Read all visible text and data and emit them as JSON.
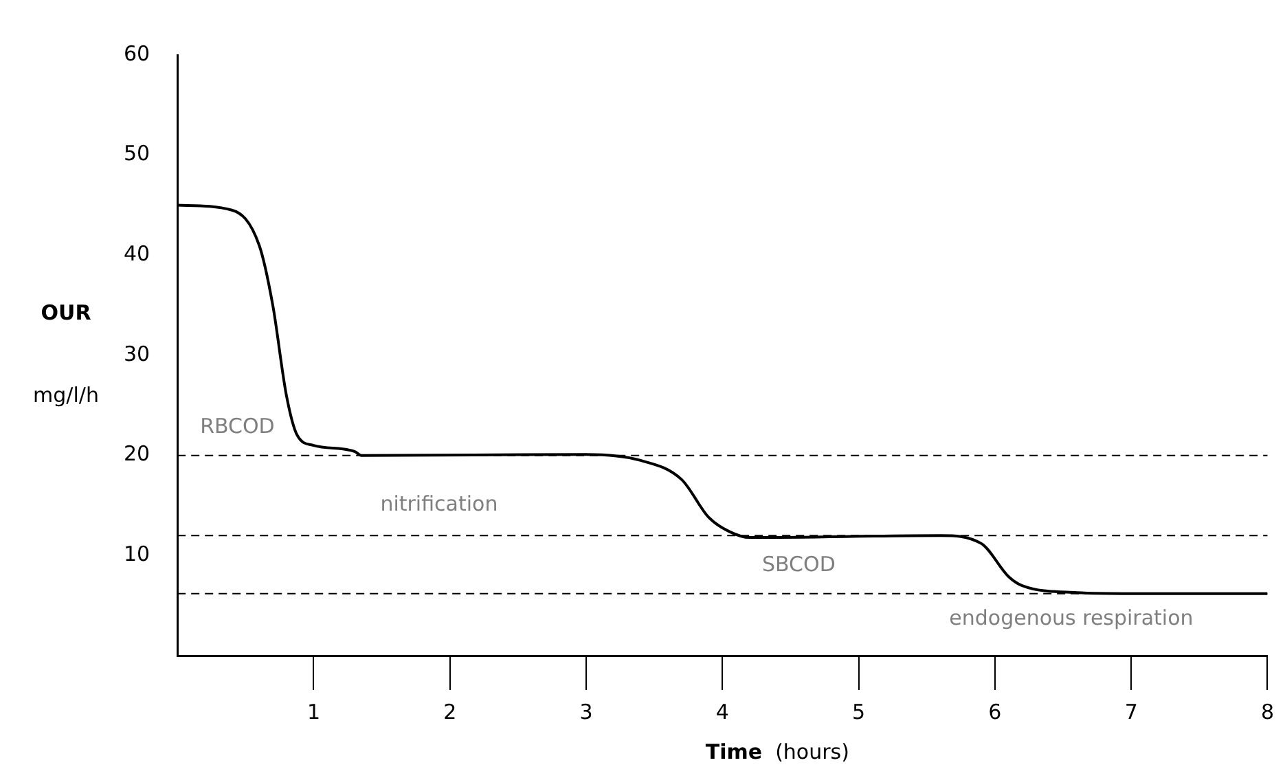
{
  "chart_data": {
    "type": "line",
    "xlabel": "Time (hours)",
    "ylabel": "OUR\nmg/l/h",
    "x": [
      0,
      0.4,
      0.6,
      0.7,
      0.8,
      0.88,
      1.0,
      1.3,
      1.35,
      3.0,
      3.4,
      3.7,
      3.9,
      4.05,
      4.2,
      5.6,
      5.9,
      6.1,
      6.2,
      6.6,
      7,
      8
    ],
    "series": [
      {
        "color": "#000000",
        "values": [
          45,
          44.5,
          41,
          35,
          26,
          22,
          21,
          20.4,
          20,
          20.1,
          19.5,
          17.6,
          13.8,
          12.4,
          11.8,
          12,
          11.2,
          7.9,
          7,
          6.3,
          6.2,
          6.2
        ]
      }
    ],
    "xlim": [
      0,
      8
    ],
    "xticks": [
      1,
      2,
      3,
      4,
      5,
      6,
      7,
      8
    ],
    "ylim": [
      0,
      60
    ],
    "yticks": [
      10,
      20,
      30,
      40,
      50,
      60
    ],
    "grid": false,
    "legend": false,
    "marker": "none",
    "line_style": "solid",
    "ref_lines": [
      {
        "axis": "y",
        "value": 20,
        "color": "#000000",
        "line_style": "dashed"
      },
      {
        "axis": "y",
        "value": 12,
        "color": "#000000",
        "line_style": "dashed"
      },
      {
        "axis": "y",
        "value": 6.2,
        "color": "#000000",
        "line_style": "dashed"
      }
    ],
    "annotations": [
      "RBCOD",
      "nitrification",
      "SBCOD",
      "endogenous respiration"
    ]
  }
}
